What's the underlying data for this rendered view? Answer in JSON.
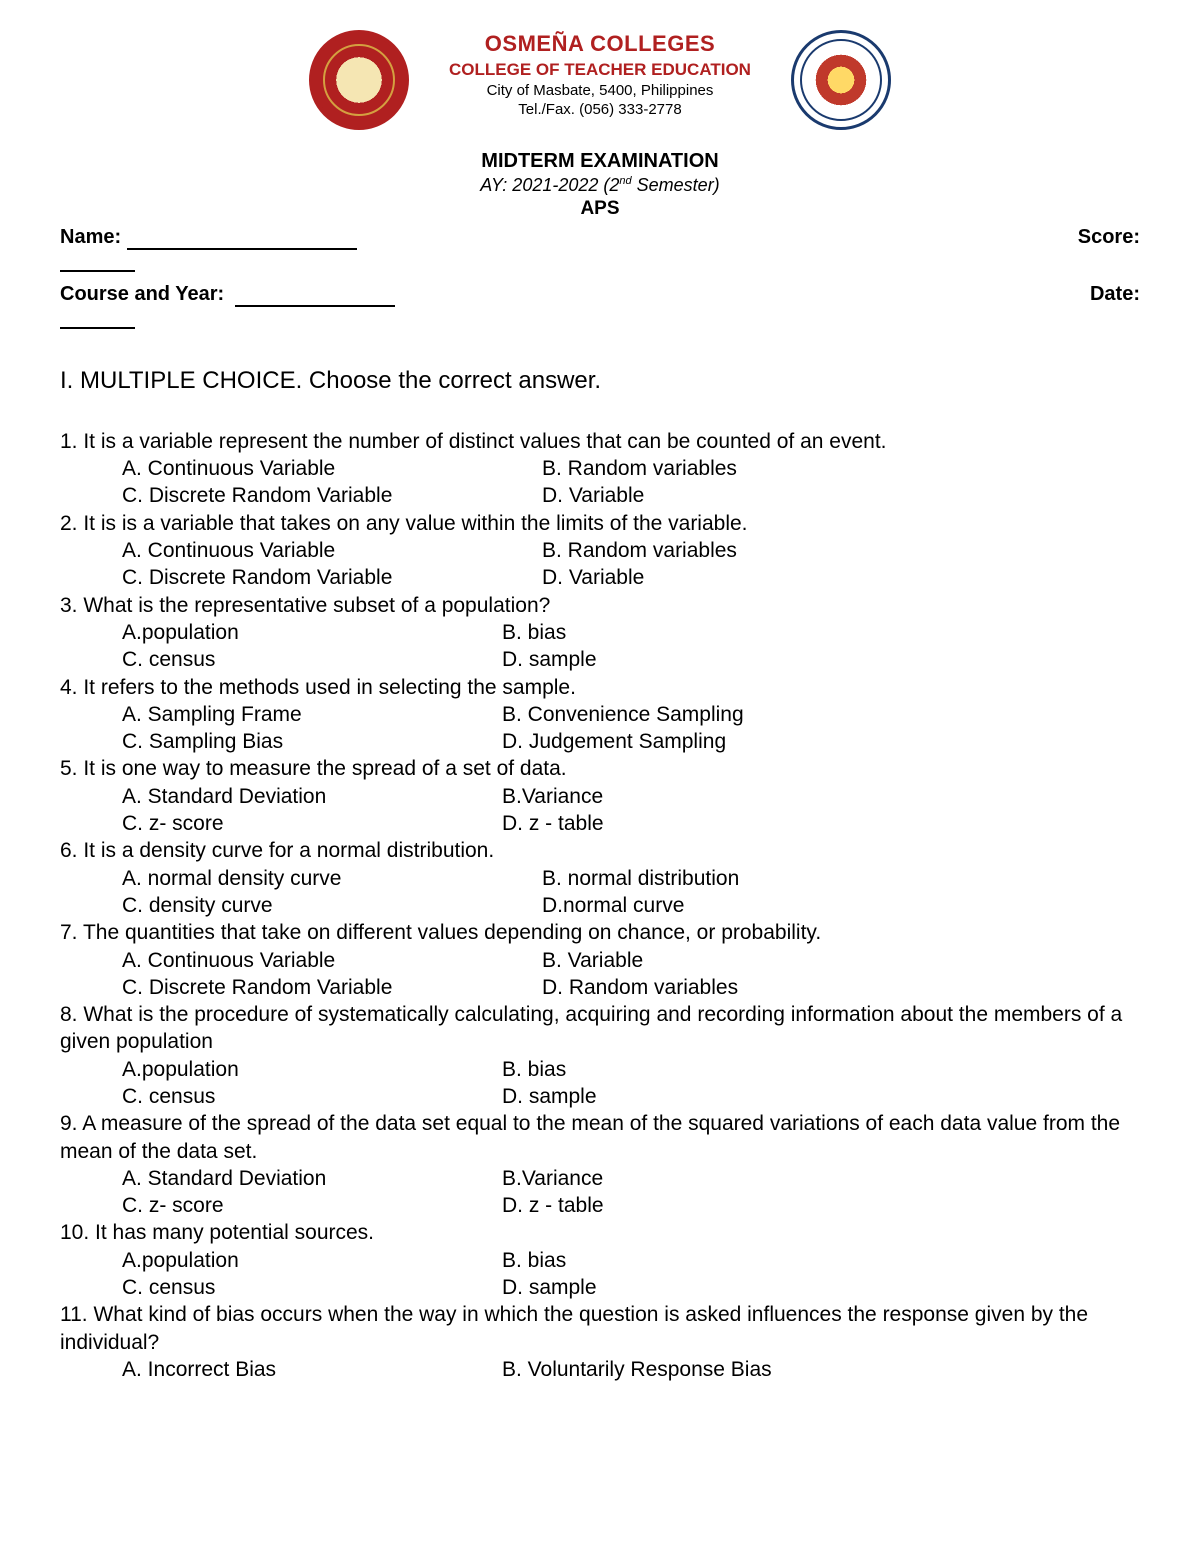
{
  "header": {
    "school": "OSMEÑA COLLEGES",
    "college": "COLLEGE OF TEACHER EDUCATION",
    "city": "City of Masbate, 5400, Philippines",
    "tel": "Tel./Fax. (056) 333-2778",
    "exam_title": "MIDTERM EXAMINATION",
    "ay_prefix": "AY: 2021-2022 (2",
    "ay_sup": "nd",
    "ay_suffix": " Semester)",
    "aps": "APS"
  },
  "fields": {
    "name_label": "Name:",
    "score_label": "Score:",
    "course_label": "Course and Year:",
    "date_label": "Date:"
  },
  "section_title": "I. MULTIPLE CHOICE. Choose the correct answer.",
  "questions": [
    {
      "text": "1. It is a variable represent the number of distinct values that can be counted of an event.",
      "a": "A. Continuous Variable",
      "b": "B. Random variables",
      "c": "C. Discrete Random Variable",
      "d": "D. Variable"
    },
    {
      "text": "2. It is is a variable that takes on any value within the limits of the variable.",
      "a": "A. Continuous Variable",
      "b": "B. Random variables",
      "c": "C. Discrete Random Variable",
      "d": "D. Variable"
    },
    {
      "text": "3. What is the representative subset of a population?",
      "a": "A.population",
      "b": "B. bias",
      "c": "C. census",
      "d": "D. sample",
      "narrow": true
    },
    {
      "text": "4. It refers to the methods used in selecting the sample.",
      "a": "A. Sampling Frame",
      "b": "B. Convenience Sampling",
      "c": "C. Sampling Bias",
      "d": "D. Judgement Sampling",
      "narrow": true
    },
    {
      "text": "5. It is one way to measure the spread of a set of data.",
      "a": "A. Standard Deviation",
      "b": "B.Variance",
      "c": "C. z- score",
      "d": "D. z - table",
      "narrow": true
    },
    {
      "text": "6. It is a density curve for a normal distribution.",
      "a": "A. normal density curve",
      "b": "B. normal distribution",
      "c": "C. density curve",
      "d": "D.normal curve"
    },
    {
      "text": "7. The quantities that take on different values depending on chance, or probability.",
      "a": "A. Continuous Variable",
      "b": "B. Variable",
      "c": "C. Discrete Random Variable",
      "d": "D. Random variables"
    },
    {
      "text": "8. What is the procedure of systematically calculating, acquiring and recording information about the members of a given population",
      "a": "A.population",
      "b": "B. bias",
      "c": "C. census",
      "d": "D. sample",
      "narrow": true
    },
    {
      "text": "9. A measure of the spread of the data set equal to the mean of the squared variations of each data value from the mean of the data set.",
      "a": "A. Standard Deviation",
      "b": "B.Variance",
      "c": "C. z- score",
      "d": "D. z - table",
      "narrow": true
    },
    {
      "text": "10. It has many potential sources.",
      "a": "A.population",
      "b": "B. bias",
      "c": "C. census",
      "d": "D. sample",
      "narrow": true
    },
    {
      "text": "11.  What kind of bias occurs when the way in which the question is asked influences the response given by the individual?",
      "a": "A. Incorrect Bias",
      "b": "B. Voluntarily Response Bias",
      "narrow": true,
      "two_only": true
    }
  ]
}
